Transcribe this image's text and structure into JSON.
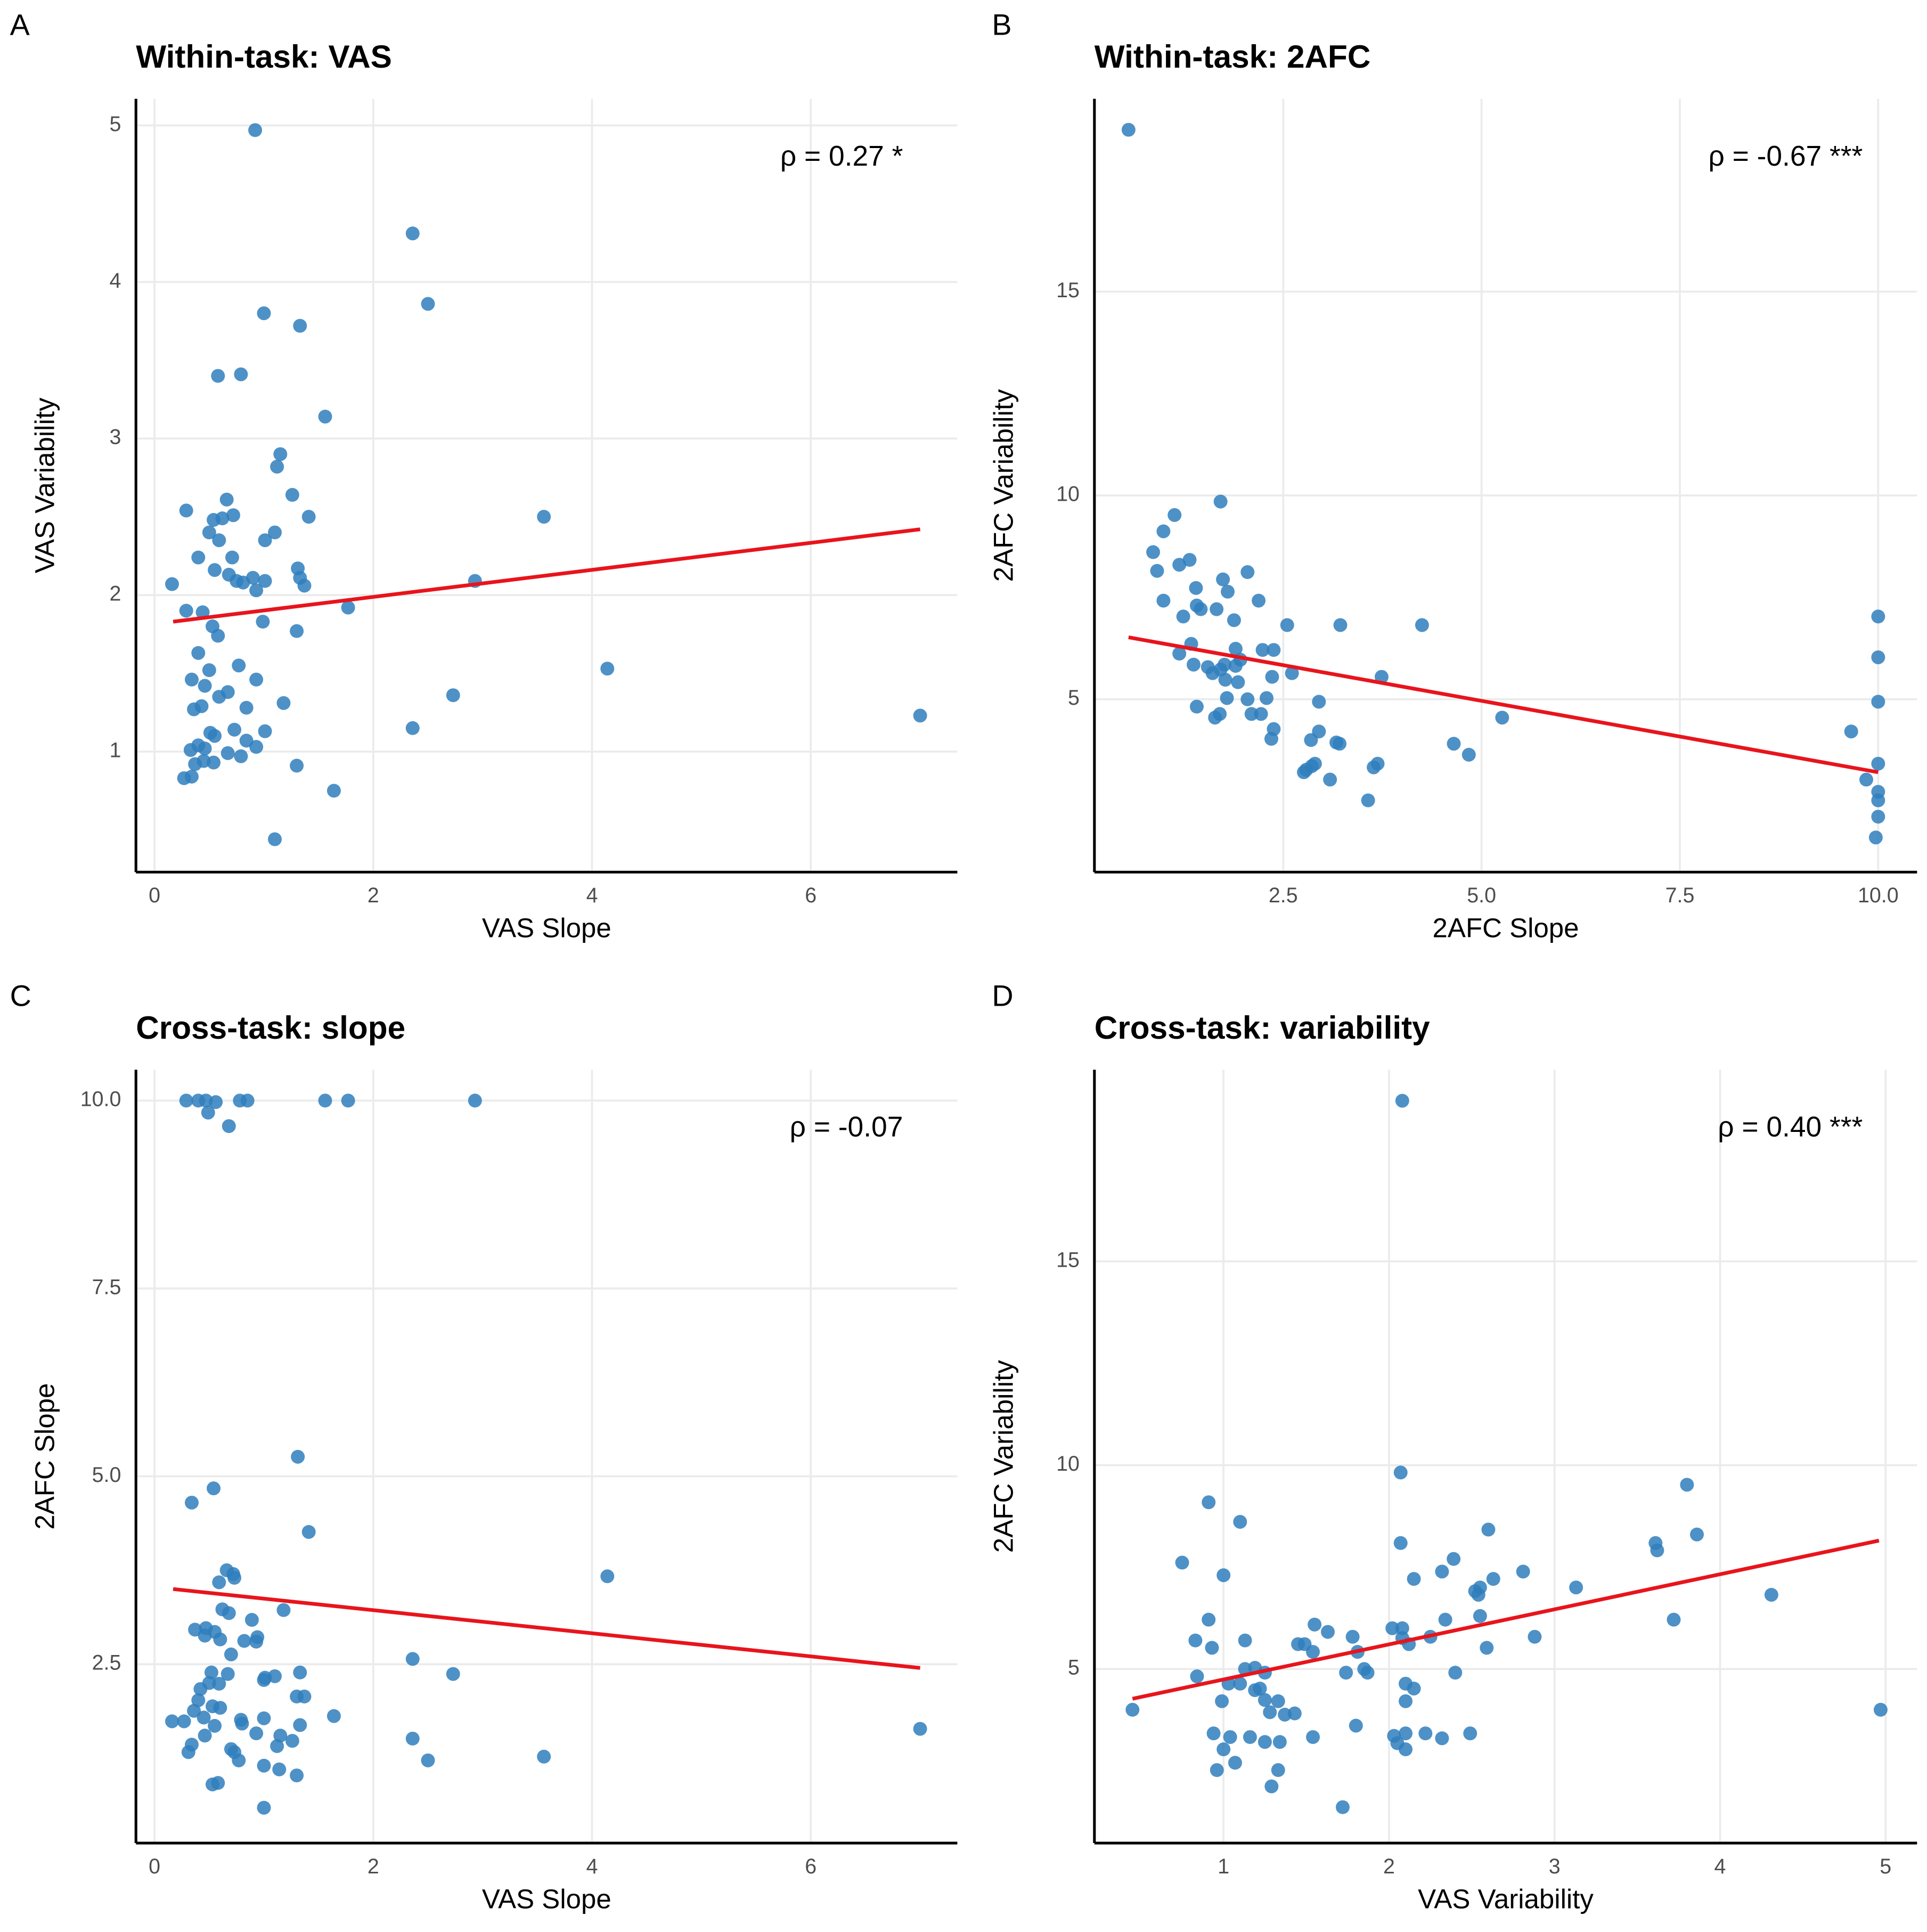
{
  "chart_data": [
    {
      "type": "scatter",
      "panel_label": "A",
      "title": "Within-task: VAS",
      "annotation": "ρ = 0.27 *",
      "xlabel": "VAS Slope",
      "ylabel": "VAS Variability",
      "color": "#2f7ebc",
      "xlim": [
        -0.17,
        7.34
      ],
      "ylim": [
        0.23,
        5.17
      ],
      "xticks": [
        0,
        2,
        4,
        6
      ],
      "yticks": [
        1,
        2,
        3,
        4,
        5
      ],
      "grid": true,
      "x": [
        0.92,
        2.36,
        2.5,
        1.0,
        1.33,
        0.58,
        0.79,
        1.56,
        1.15,
        1.12,
        1.26,
        0.66,
        0.29,
        1.41,
        0.72,
        3.56,
        0.54,
        0.62,
        0.5,
        1.1,
        0.59,
        1.01,
        0.4,
        0.71,
        0.55,
        1.31,
        0.68,
        1.33,
        0.9,
        1.01,
        0.75,
        2.93,
        0.16,
        1.37,
        0.81,
        0.93,
        1.77,
        0.29,
        0.44,
        0.99,
        0.53,
        0.58,
        1.3,
        0.4,
        0.77,
        0.5,
        4.14,
        0.34,
        0.46,
        0.93,
        0.67,
        0.59,
        2.73,
        1.18,
        0.43,
        0.36,
        0.84,
        7.0,
        0.73,
        1.01,
        2.36,
        0.51,
        0.55,
        0.84,
        0.4,
        0.93,
        0.33,
        0.46,
        0.67,
        0.79,
        0.37,
        0.45,
        0.54,
        1.3,
        0.27,
        0.34,
        1.64,
        1.1
      ],
      "values": [
        4.97,
        4.31,
        3.86,
        3.8,
        3.72,
        3.4,
        3.41,
        3.14,
        2.9,
        2.82,
        2.64,
        2.61,
        2.54,
        2.5,
        2.51,
        2.5,
        2.48,
        2.49,
        2.4,
        2.4,
        2.35,
        2.35,
        2.24,
        2.24,
        2.16,
        2.17,
        2.13,
        2.11,
        2.11,
        2.09,
        2.09,
        2.09,
        2.07,
        2.06,
        2.08,
        2.03,
        1.92,
        1.9,
        1.89,
        1.83,
        1.8,
        1.74,
        1.77,
        1.63,
        1.55,
        1.52,
        1.53,
        1.46,
        1.42,
        1.46,
        1.38,
        1.35,
        1.36,
        1.31,
        1.29,
        1.27,
        1.28,
        1.23,
        1.14,
        1.13,
        1.15,
        1.12,
        1.1,
        1.07,
        1.04,
        1.03,
        1.01,
        1.02,
        0.99,
        0.97,
        0.92,
        0.94,
        0.93,
        0.91,
        0.83,
        0.84,
        0.75,
        0.44
      ],
      "trend_line": {
        "color": "#e8141c",
        "x": [
          0.17,
          7.0
        ],
        "y": [
          1.83,
          2.42
        ]
      }
    },
    {
      "type": "scatter",
      "panel_label": "B",
      "title": "Within-task: 2AFC",
      "annotation": "ρ = -0.67 ***",
      "xlabel": "2AFC Slope",
      "ylabel": "2AFC Variability",
      "color": "#2f7ebc",
      "xlim": [
        0.12,
        10.49
      ],
      "ylim": [
        0.76,
        19.73
      ],
      "xticks": [
        2.5,
        {
          "value": 5,
          "label": "5.0"
        },
        7.5,
        {
          "value": 10,
          "label": "10.0"
        }
      ],
      "yticks": [
        5,
        10,
        15
      ],
      "grid": true,
      "x": [
        0.55,
        1.71,
        1.13,
        0.99,
        0.86,
        1.32,
        1.19,
        0.91,
        2.05,
        1.74,
        1.4,
        1.8,
        0.99,
        2.19,
        1.41,
        1.66,
        1.46,
        1.24,
        1.88,
        2.55,
        3.22,
        4.25,
        10.0,
        10.0,
        1.34,
        1.19,
        1.9,
        2.24,
        2.38,
        1.96,
        1.37,
        1.76,
        1.9,
        1.55,
        1.71,
        1.61,
        2.61,
        2.36,
        1.77,
        1.93,
        3.74,
        2.29,
        1.79,
        2.05,
        2.95,
        10.0,
        1.41,
        2.1,
        2.22,
        1.7,
        1.64,
        5.26,
        2.38,
        2.95,
        9.66,
        2.35,
        2.85,
        3.21,
        3.17,
        4.65,
        4.84,
        10.0,
        2.9,
        3.69,
        2.86,
        3.64,
        2.79,
        2.76,
        3.09,
        9.85,
        10.0,
        3.57,
        10.0,
        10.0,
        9.97
      ],
      "values": [
        18.97,
        9.85,
        9.52,
        9.12,
        8.61,
        8.42,
        8.3,
        8.15,
        8.12,
        7.94,
        7.73,
        7.64,
        7.42,
        7.42,
        7.3,
        7.21,
        7.21,
        7.03,
        6.94,
        6.82,
        6.82,
        6.82,
        7.03,
        6.03,
        6.36,
        6.12,
        6.24,
        6.21,
        6.21,
        5.97,
        5.85,
        5.85,
        5.82,
        5.79,
        5.73,
        5.64,
        5.64,
        5.55,
        5.48,
        5.42,
        5.55,
        5.03,
        5.03,
        5.0,
        4.94,
        4.94,
        4.82,
        4.64,
        4.64,
        4.64,
        4.55,
        4.55,
        4.27,
        4.21,
        4.21,
        4.03,
        4.0,
        3.91,
        3.94,
        3.91,
        3.64,
        3.42,
        3.42,
        3.42,
        3.36,
        3.33,
        3.27,
        3.21,
        3.03,
        3.03,
        2.73,
        2.52,
        2.52,
        2.12,
        1.61
      ],
      "trend_line": {
        "color": "#e8141c",
        "x": [
          0.55,
          10.0
        ],
        "y": [
          6.52,
          3.21
        ]
      }
    },
    {
      "type": "scatter",
      "panel_label": "C",
      "title": "Cross-task: slope",
      "annotation": "ρ = -0.07",
      "xlabel": "VAS Slope",
      "ylabel": "2AFC Slope",
      "color": "#2f7ebc",
      "xlim": [
        -0.17,
        7.34
      ],
      "ylim": [
        0.12,
        10.41
      ],
      "xticks": [
        0,
        2,
        4,
        6
      ],
      "yticks": [
        2.5,
        {
          "value": 5,
          "label": "5.0"
        },
        7.5,
        {
          "value": 10,
          "label": "10.0"
        }
      ],
      "grid": true,
      "x": [
        0.29,
        0.4,
        0.47,
        0.56,
        0.78,
        0.85,
        1.56,
        1.77,
        2.93,
        0.49,
        0.68,
        1.31,
        0.54,
        0.34,
        1.41,
        0.66,
        0.72,
        0.73,
        4.14,
        0.59,
        0.62,
        0.68,
        1.18,
        0.89,
        0.37,
        0.47,
        0.55,
        0.46,
        0.6,
        0.94,
        0.93,
        0.82,
        0.7,
        2.36,
        0.52,
        0.67,
        1.33,
        2.73,
        1.01,
        1.1,
        1.0,
        0.5,
        0.59,
        0.42,
        1.3,
        1.37,
        0.4,
        0.53,
        0.6,
        0.36,
        1.64,
        0.45,
        1.0,
        0.79,
        0.16,
        0.27,
        0.8,
        0.55,
        1.33,
        7.0,
        0.93,
        1.15,
        0.46,
        1.26,
        2.36,
        0.34,
        1.12,
        0.7,
        0.31,
        0.73,
        3.56,
        2.5,
        0.77,
        1.0,
        1.14,
        1.3,
        0.58,
        0.53,
        1.0
      ],
      "values": [
        10.0,
        10.0,
        10.0,
        9.98,
        10.0,
        10.0,
        10.0,
        10.0,
        10.0,
        9.84,
        9.66,
        5.26,
        4.84,
        4.65,
        4.26,
        3.75,
        3.7,
        3.65,
        3.67,
        3.59,
        3.23,
        3.18,
        3.22,
        3.09,
        2.96,
        2.98,
        2.93,
        2.88,
        2.83,
        2.86,
        2.8,
        2.81,
        2.63,
        2.57,
        2.39,
        2.37,
        2.39,
        2.37,
        2.32,
        2.34,
        2.29,
        2.25,
        2.24,
        2.17,
        2.07,
        2.07,
        2.02,
        1.94,
        1.92,
        1.88,
        1.81,
        1.79,
        1.78,
        1.76,
        1.74,
        1.74,
        1.71,
        1.68,
        1.69,
        1.64,
        1.58,
        1.55,
        1.55,
        1.48,
        1.51,
        1.43,
        1.41,
        1.37,
        1.33,
        1.33,
        1.27,
        1.22,
        1.22,
        1.15,
        1.1,
        1.02,
        0.92,
        0.9,
        0.59
      ],
      "trend_line": {
        "color": "#e8141c",
        "x": [
          0.17,
          7.0
        ],
        "y": [
          3.5,
          2.45
        ]
      }
    },
    {
      "type": "scatter",
      "panel_label": "D",
      "title": "Cross-task: variability",
      "annotation": "ρ = 0.40 ***",
      "xlabel": "VAS Variability",
      "ylabel": "2AFC Variability",
      "color": "#2f7ebc",
      "xlim": [
        0.22,
        5.19
      ],
      "ylim": [
        0.73,
        19.7
      ],
      "xticks": [
        1,
        2,
        3,
        4,
        5
      ],
      "yticks": [
        5,
        10,
        15
      ],
      "grid": true,
      "x": [
        2.08,
        3.8,
        2.07,
        0.91,
        1.1,
        2.6,
        3.86,
        2.07,
        3.61,
        3.62,
        0.75,
        2.39,
        2.32,
        2.81,
        1.0,
        2.15,
        2.63,
        3.13,
        2.55,
        2.52,
        2.54,
        4.31,
        2.55,
        3.72,
        0.91,
        2.34,
        1.55,
        2.02,
        2.08,
        1.63,
        1.78,
        2.25,
        2.88,
        0.83,
        1.13,
        2.08,
        2.12,
        1.45,
        1.49,
        0.93,
        2.59,
        1.54,
        1.81,
        1.19,
        1.85,
        1.87,
        1.13,
        1.74,
        2.4,
        1.25,
        0.84,
        2.1,
        2.15,
        1.03,
        1.1,
        1.22,
        1.19,
        1.25,
        1.33,
        0.99,
        2.1,
        0.45,
        4.97,
        1.28,
        1.37,
        1.43,
        1.8,
        0.94,
        2.03,
        2.1,
        2.22,
        2.49,
        1.04,
        1.16,
        1.54,
        2.32,
        1.25,
        1.34,
        2.05,
        1.0,
        2.1,
        1.07,
        0.96,
        1.33,
        1.29,
        1.72
      ],
      "values": [
        18.94,
        9.52,
        9.82,
        9.09,
        8.61,
        8.42,
        8.3,
        8.09,
        8.09,
        7.91,
        7.61,
        7.7,
        7.39,
        7.39,
        7.3,
        7.21,
        7.21,
        7.0,
        7.0,
        6.91,
        6.82,
        6.82,
        6.3,
        6.21,
        6.21,
        6.21,
        6.09,
        6.0,
        6.0,
        5.91,
        5.79,
        5.79,
        5.79,
        5.7,
        5.7,
        5.76,
        5.61,
        5.61,
        5.61,
        5.52,
        5.52,
        5.42,
        5.42,
        5.03,
        5.0,
        4.91,
        5.0,
        4.91,
        4.91,
        4.91,
        4.82,
        4.64,
        4.52,
        4.64,
        4.64,
        4.52,
        4.48,
        4.24,
        4.21,
        4.21,
        4.21,
        4.0,
        4.0,
        3.94,
        3.88,
        3.91,
        3.61,
        3.42,
        3.36,
        3.42,
        3.42,
        3.42,
        3.33,
        3.33,
        3.33,
        3.3,
        3.21,
        3.21,
        3.18,
        3.03,
        3.03,
        2.7,
        2.52,
        2.52,
        2.12,
        1.61
      ],
      "trend_line": {
        "color": "#e8141c",
        "x": [
          0.45,
          4.96
        ],
        "y": [
          4.27,
          8.15
        ]
      }
    }
  ]
}
